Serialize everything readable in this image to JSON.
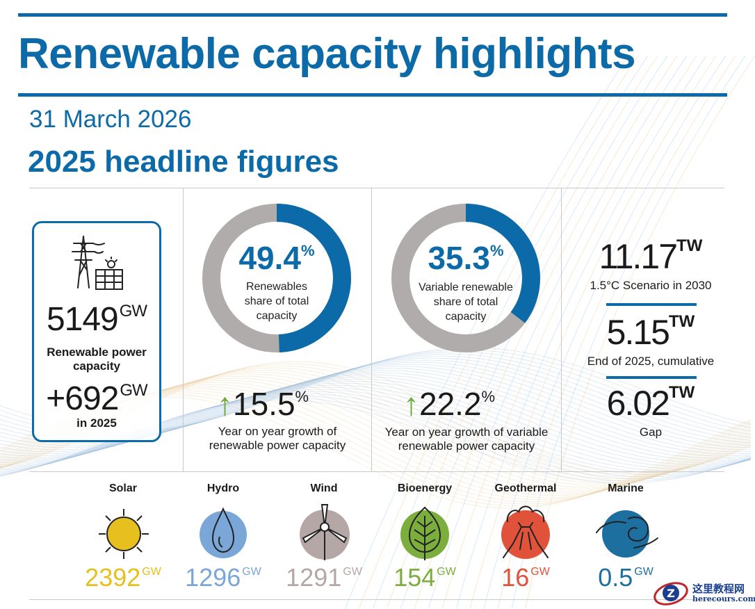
{
  "header": {
    "title": "Renewable capacity highlights",
    "date": "31 March 2026",
    "subtitle": "2025 headline figures"
  },
  "colors": {
    "accent": "#0b6aa7",
    "donut_track": "#b0acab",
    "growth_arrow": "#6bab3e"
  },
  "capacity_panel": {
    "total_value": "5149",
    "total_unit": "GW",
    "total_label_line1": "Renewable power",
    "total_label_line2": "capacity",
    "added_value": "+692",
    "added_unit": "GW",
    "added_label": "in 2025"
  },
  "share_panel": {
    "share": 49.4,
    "value": "49.4",
    "unit": "%",
    "label_line1": "Renewables",
    "label_line2": "share of total",
    "label_line3": "capacity",
    "growth_value": "15.5",
    "growth_unit": "%",
    "growth_label_line1": "Year on year growth of",
    "growth_label_line2": "renewable power capacity"
  },
  "variable_panel": {
    "share": 35.3,
    "value": "35.3",
    "unit": "%",
    "label_line1": "Variable renewable",
    "label_line2": "share of total",
    "label_line3": "capacity",
    "growth_value": "22.2",
    "growth_unit": "%",
    "growth_label_line1": "Year on year growth of variable",
    "growth_label_line2": "renewable power capacity"
  },
  "target_panel": {
    "scenario_value": "11.17",
    "scenario_unit": "TW",
    "scenario_label": "1.5°C Scenario in 2030",
    "cumulative_value": "5.15",
    "cumulative_unit": "TW",
    "cumulative_label": "End of 2025, cumulative",
    "gap_value": "6.02",
    "gap_unit": "TW",
    "gap_label": "Gap"
  },
  "technologies": [
    {
      "name": "Solar",
      "value": "2392",
      "unit": "GW",
      "color": "#e7bf1e",
      "icon": "sun-icon"
    },
    {
      "name": "Hydro",
      "value": "1296",
      "unit": "GW",
      "color": "#7aa6d8",
      "icon": "water-drop-icon"
    },
    {
      "name": "Wind",
      "value": "1291",
      "unit": "GW",
      "color": "#b4a7a6",
      "icon": "wind-turbine-icon"
    },
    {
      "name": "Bioenergy",
      "value": "154",
      "unit": "GW",
      "color": "#7cae3e",
      "icon": "leaf-icon"
    },
    {
      "name": "Geothermal",
      "value": "16",
      "unit": "GW",
      "color": "#e0533a",
      "icon": "volcano-icon"
    },
    {
      "name": "Marine",
      "value": "0.5",
      "unit": "GW",
      "color": "#1d6fa0",
      "icon": "wave-icon"
    }
  ],
  "watermark": {
    "line1": "这里教程网",
    "line2": "herecours.com"
  }
}
